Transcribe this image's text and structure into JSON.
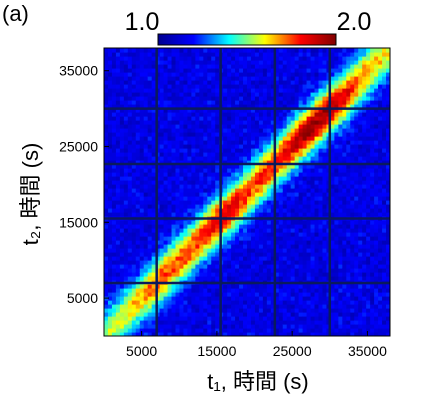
{
  "panel_label": "(a)",
  "colors": {
    "colormap": [
      "#00008f",
      "#0000ff",
      "#00ffff",
      "#ffff00",
      "#ff0000",
      "#800000"
    ],
    "gap_line": "#0a1a5c",
    "background": "#ffffff"
  },
  "chart_data": {
    "type": "heatmap",
    "title": "",
    "xlabel": "t₁, 時間 (s)",
    "ylabel": "t₂, 時間 (s)",
    "xlim": [
      0,
      38000
    ],
    "ylim": [
      0,
      38000
    ],
    "x_ticks": [
      5000,
      15000,
      25000,
      35000
    ],
    "y_ticks": [
      5000,
      15000,
      25000,
      35000
    ],
    "x_tick_labels": [
      "5000",
      "15000",
      "25000",
      "35000"
    ],
    "y_tick_labels": [
      "5000",
      "15000",
      "25000",
      "35000"
    ],
    "colorbar": {
      "min": 1.0,
      "max": 2.0,
      "tick_labels": [
        "1.0",
        "2.0"
      ],
      "colormap": "jet",
      "placement": "top"
    },
    "gap_times": [
      7000,
      15500,
      22700,
      30000
    ],
    "diagonal_profile": [
      {
        "t": 0,
        "value": 1.55
      },
      {
        "t": 3000,
        "value": 1.6
      },
      {
        "t": 7000,
        "value": 1.75
      },
      {
        "t": 12000,
        "value": 1.75
      },
      {
        "t": 16000,
        "value": 1.88
      },
      {
        "t": 20000,
        "value": 1.75
      },
      {
        "t": 24000,
        "value": 1.82
      },
      {
        "t": 27000,
        "value": 1.98
      },
      {
        "t": 30000,
        "value": 1.95
      },
      {
        "t": 34000,
        "value": 1.7
      },
      {
        "t": 38000,
        "value": 1.6
      }
    ],
    "off_diagonal_level": 1.15,
    "diagonal_width_s": 2200,
    "grid": false
  }
}
